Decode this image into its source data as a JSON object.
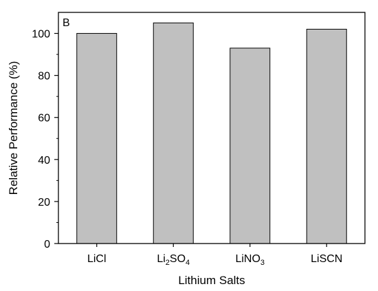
{
  "chart_data": {
    "type": "bar",
    "panel_label": "B",
    "categories": [
      {
        "label": "LiCl",
        "parts": [
          {
            "t": "LiCl",
            "sub": false
          }
        ]
      },
      {
        "label": "Li2SO4",
        "parts": [
          {
            "t": "Li",
            "sub": false
          },
          {
            "t": "2",
            "sub": true
          },
          {
            "t": "SO",
            "sub": false
          },
          {
            "t": "4",
            "sub": true
          }
        ]
      },
      {
        "label": "LiNO3",
        "parts": [
          {
            "t": "LiNO",
            "sub": false
          },
          {
            "t": "3",
            "sub": true
          }
        ]
      },
      {
        "label": "LiSCN",
        "parts": [
          {
            "t": "LiSCN",
            "sub": false
          }
        ]
      }
    ],
    "values": [
      100,
      105,
      93,
      102
    ],
    "xlabel": "Lithium Salts",
    "ylabel": "Relative Performance (%)",
    "ylim": [
      0,
      110
    ],
    "yticks": [
      0,
      20,
      40,
      60,
      80,
      100
    ],
    "ytick_labels": [
      "0",
      "20",
      "40",
      "60",
      "80",
      "100"
    ],
    "grid": false,
    "bar_color": "#c0c0c0",
    "bar_edge_color": "#000000"
  }
}
